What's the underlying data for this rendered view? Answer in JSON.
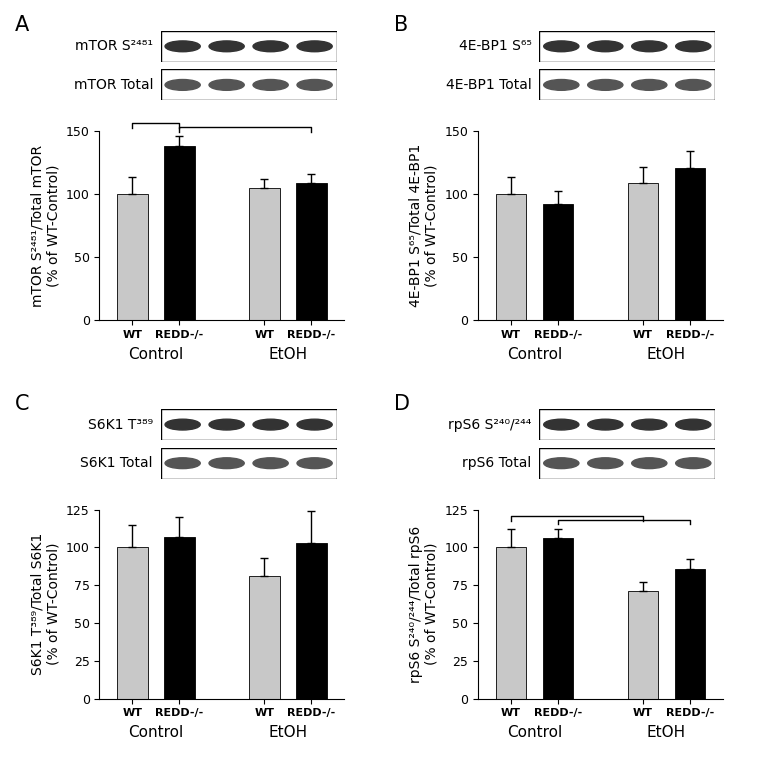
{
  "chart_data": [
    {
      "type": "bar",
      "panel": "A",
      "blots": [
        "mTOR S²⁴⁸¹",
        "mTOR Total"
      ],
      "categories": [
        "WT",
        "REDD-/-",
        "WT",
        "REDD-/-"
      ],
      "groups": [
        "Control",
        "EtOH"
      ],
      "values": [
        100,
        138,
        105,
        109
      ],
      "errors": [
        14,
        8,
        7,
        7
      ],
      "colors": [
        "#c8c8c8",
        "#000000",
        "#c8c8c8",
        "#000000"
      ],
      "ylabel": "mTOR S²⁴⁸¹/Total mTOR\n(% of WT-Control)",
      "ylim": [
        0,
        150
      ],
      "yticks": [
        0,
        50,
        100,
        150
      ],
      "significance": [
        [
          0,
          1
        ],
        [
          1,
          3
        ]
      ]
    },
    {
      "type": "bar",
      "panel": "B",
      "blots": [
        "4E-BP1 S⁶⁵",
        "4E-BP1 Total"
      ],
      "categories": [
        "WT",
        "REDD-/-",
        "WT",
        "REDD-/-"
      ],
      "groups": [
        "Control",
        "EtOH"
      ],
      "values": [
        100,
        92,
        109,
        121
      ],
      "errors": [
        14,
        11,
        13,
        13
      ],
      "colors": [
        "#c8c8c8",
        "#000000",
        "#c8c8c8",
        "#000000"
      ],
      "ylabel": "4E-BP1 S⁶⁵/Total 4E-BP1\n(% of WT-Control)",
      "ylim": [
        0,
        150
      ],
      "yticks": [
        0,
        50,
        100,
        150
      ],
      "significance": []
    },
    {
      "type": "bar",
      "panel": "C",
      "blots": [
        "S6K1 T³⁸⁹",
        "S6K1 Total"
      ],
      "categories": [
        "WT",
        "REDD-/-",
        "WT",
        "REDD-/-"
      ],
      "groups": [
        "Control",
        "EtOH"
      ],
      "values": [
        100,
        107,
        81,
        103
      ],
      "errors": [
        15,
        13,
        12,
        21
      ],
      "colors": [
        "#c8c8c8",
        "#000000",
        "#c8c8c8",
        "#000000"
      ],
      "ylabel": "S6K1 T³⁸⁹/Total S6K1\n(% of WT-Control)",
      "ylim": [
        0,
        125
      ],
      "yticks": [
        0,
        25,
        50,
        75,
        100,
        125
      ],
      "significance": []
    },
    {
      "type": "bar",
      "panel": "D",
      "blots": [
        "rpS6 S²⁴⁰/²⁴⁴",
        "rpS6 Total"
      ],
      "categories": [
        "WT",
        "REDD-/-",
        "WT",
        "REDD-/-"
      ],
      "groups": [
        "Control",
        "EtOH"
      ],
      "values": [
        100,
        106,
        71,
        86
      ],
      "errors": [
        12,
        6,
        6,
        6
      ],
      "colors": [
        "#c8c8c8",
        "#000000",
        "#c8c8c8",
        "#000000"
      ],
      "ylabel": "rpS6 S²⁴⁰/²⁴⁴/Total rpS6\n(% of WT-Control)",
      "ylim": [
        0,
        125
      ],
      "yticks": [
        0,
        25,
        50,
        75,
        100,
        125
      ],
      "significance": [
        [
          0,
          2
        ],
        [
          1,
          3
        ]
      ]
    }
  ]
}
